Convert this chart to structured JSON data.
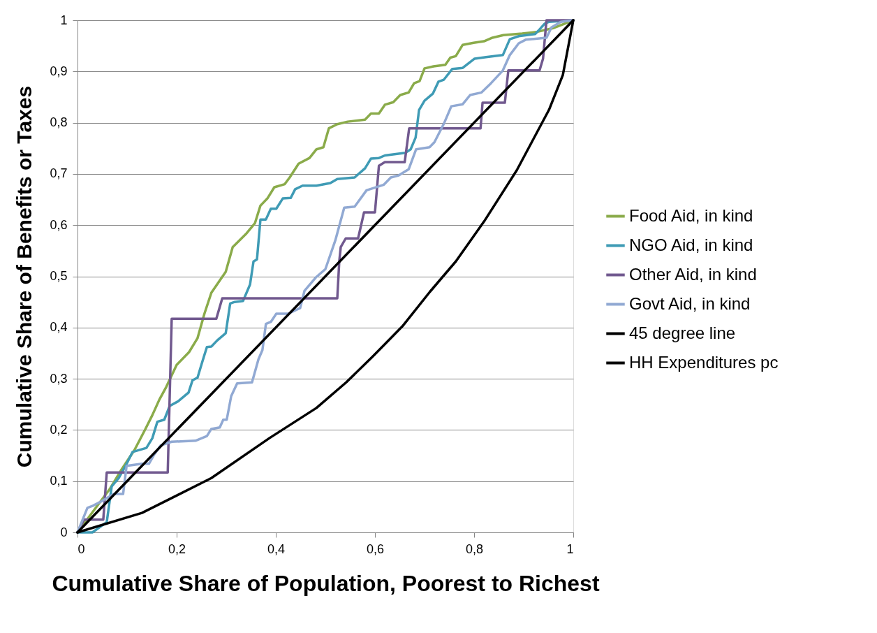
{
  "chart_data": {
    "type": "line",
    "xlabel": "Cumulative Share of Population, Poorest to Richest",
    "ylabel": "Cumulative Share of Benefits or Taxes",
    "xlim": [
      0,
      1
    ],
    "ylim": [
      0,
      1
    ],
    "xticks": [
      0,
      {
        "value": 0.2,
        "label": "0,2"
      },
      {
        "value": 0.4,
        "label": "0,4"
      },
      {
        "value": 0.6,
        "label": "0,6"
      },
      {
        "value": 0.8,
        "label": "0,8"
      },
      1
    ],
    "yticks": [
      0,
      {
        "value": 0.1,
        "label": "0,1"
      },
      {
        "value": 0.2,
        "label": "0,2"
      },
      {
        "value": 0.3,
        "label": "0,3"
      },
      {
        "value": 0.4,
        "label": "0,4"
      },
      {
        "value": 0.5,
        "label": "0,5"
      },
      {
        "value": 0.6,
        "label": "0,6"
      },
      {
        "value": 0.7,
        "label": "0,7"
      },
      {
        "value": 0.8,
        "label": "0,8"
      },
      {
        "value": 0.9,
        "label": "0,9"
      },
      1
    ],
    "grid": "y",
    "legend": "right",
    "series": [
      {
        "name": "Food Aid, in kind",
        "color": "#8aab4a",
        "x": [
          0,
          0.066,
          0.087,
          0.115,
          0.137,
          0.151,
          0.165,
          0.179,
          0.2,
          0.225,
          0.242,
          0.256,
          0.27,
          0.299,
          0.313,
          0.341,
          0.358,
          0.369,
          0.383,
          0.397,
          0.418,
          0.428,
          0.446,
          0.468,
          0.482,
          0.496,
          0.507,
          0.524,
          0.545,
          0.58,
          0.592,
          0.608,
          0.62,
          0.637,
          0.651,
          0.668,
          0.679,
          0.69,
          0.7,
          0.718,
          0.742,
          0.752,
          0.763,
          0.777,
          0.799,
          0.82,
          0.837,
          0.859,
          0.897,
          0.925,
          0.961,
          1
        ],
        "values": [
          0,
          0.086,
          0.12,
          0.161,
          0.202,
          0.229,
          0.259,
          0.284,
          0.327,
          0.352,
          0.379,
          0.427,
          0.468,
          0.509,
          0.557,
          0.584,
          0.604,
          0.638,
          0.652,
          0.674,
          0.68,
          0.693,
          0.72,
          0.731,
          0.748,
          0.752,
          0.789,
          0.797,
          0.802,
          0.806,
          0.818,
          0.818,
          0.835,
          0.84,
          0.854,
          0.859,
          0.877,
          0.881,
          0.906,
          0.91,
          0.913,
          0.927,
          0.93,
          0.952,
          0.956,
          0.959,
          0.966,
          0.971,
          0.974,
          0.977,
          0.985,
          1
        ]
      },
      {
        "name": "NGO Aid, in kind",
        "color": "#3f9bb5",
        "x": [
          0,
          0.03,
          0.059,
          0.069,
          0.083,
          0.097,
          0.111,
          0.139,
          0.151,
          0.161,
          0.175,
          0.186,
          0.203,
          0.224,
          0.232,
          0.242,
          0.252,
          0.261,
          0.27,
          0.282,
          0.299,
          0.308,
          0.317,
          0.334,
          0.348,
          0.355,
          0.362,
          0.369,
          0.38,
          0.39,
          0.401,
          0.414,
          0.43,
          0.439,
          0.454,
          0.482,
          0.51,
          0.524,
          0.559,
          0.58,
          0.592,
          0.608,
          0.62,
          0.661,
          0.672,
          0.682,
          0.689,
          0.7,
          0.717,
          0.728,
          0.739,
          0.756,
          0.777,
          0.801,
          0.824,
          0.858,
          0.872,
          0.89,
          0.923,
          0.932,
          0.942,
          0.951,
          1
        ],
        "values": [
          0,
          0,
          0.02,
          0.09,
          0.106,
          0.13,
          0.157,
          0.165,
          0.184,
          0.216,
          0.22,
          0.247,
          0.256,
          0.273,
          0.297,
          0.302,
          0.334,
          0.362,
          0.363,
          0.375,
          0.389,
          0.447,
          0.45,
          0.452,
          0.484,
          0.529,
          0.533,
          0.611,
          0.611,
          0.632,
          0.632,
          0.652,
          0.653,
          0.67,
          0.677,
          0.677,
          0.682,
          0.69,
          0.693,
          0.711,
          0.73,
          0.731,
          0.736,
          0.741,
          0.748,
          0.771,
          0.825,
          0.843,
          0.857,
          0.88,
          0.884,
          0.905,
          0.907,
          0.925,
          0.928,
          0.932,
          0.963,
          0.969,
          0.973,
          0.982,
          0.993,
          0.997,
          1
        ]
      },
      {
        "name": "Other Aid, in kind",
        "color": "#71598f",
        "x": [
          0,
          0.013,
          0.052,
          0.059,
          0.182,
          0.19,
          0.28,
          0.292,
          0.524,
          0.528,
          0.531,
          0.541,
          0.566,
          0.578,
          0.6,
          0.608,
          0.62,
          0.66,
          0.669,
          0.813,
          0.817,
          0.862,
          0.869,
          0.932,
          0.939,
          0.946,
          1
        ],
        "values": [
          0,
          0.025,
          0.025,
          0.117,
          0.117,
          0.417,
          0.417,
          0.457,
          0.457,
          0.529,
          0.557,
          0.574,
          0.574,
          0.625,
          0.625,
          0.716,
          0.723,
          0.723,
          0.789,
          0.789,
          0.839,
          0.839,
          0.902,
          0.902,
          0.925,
          1,
          1
        ]
      },
      {
        "name": "Govt Aid, in kind",
        "color": "#91a9d3",
        "x": [
          0,
          0.02,
          0.031,
          0.049,
          0.073,
          0.092,
          0.099,
          0.13,
          0.144,
          0.154,
          0.168,
          0.19,
          0.238,
          0.261,
          0.27,
          0.287,
          0.294,
          0.301,
          0.31,
          0.322,
          0.352,
          0.365,
          0.373,
          0.38,
          0.39,
          0.401,
          0.425,
          0.449,
          0.458,
          0.482,
          0.5,
          0.52,
          0.538,
          0.559,
          0.583,
          0.618,
          0.632,
          0.648,
          0.668,
          0.683,
          0.71,
          0.72,
          0.739,
          0.754,
          0.777,
          0.792,
          0.815,
          0.834,
          0.858,
          0.872,
          0.89,
          0.904,
          0.946,
          0.956,
          0.975,
          1
        ],
        "values": [
          0,
          0.048,
          0.052,
          0.061,
          0.075,
          0.075,
          0.13,
          0.134,
          0.134,
          0.151,
          0.17,
          0.177,
          0.179,
          0.188,
          0.202,
          0.205,
          0.22,
          0.22,
          0.266,
          0.291,
          0.293,
          0.338,
          0.356,
          0.407,
          0.411,
          0.427,
          0.427,
          0.438,
          0.472,
          0.499,
          0.514,
          0.57,
          0.634,
          0.636,
          0.668,
          0.679,
          0.693,
          0.697,
          0.709,
          0.748,
          0.752,
          0.762,
          0.798,
          0.832,
          0.836,
          0.854,
          0.859,
          0.877,
          0.902,
          0.932,
          0.955,
          0.962,
          0.966,
          0.986,
          0.997,
          1
        ]
      },
      {
        "name": "45 degree line",
        "color": "#000000",
        "x": [
          0,
          1
        ],
        "values": [
          0,
          1
        ]
      },
      {
        "name": "HH Expenditures pc",
        "color": "#000000",
        "x": [
          0,
          0.13,
          0.27,
          0.387,
          0.482,
          0.542,
          0.594,
          0.655,
          0.711,
          0.763,
          0.82,
          0.886,
          0.951,
          0.979,
          1
        ],
        "values": [
          0,
          0.038,
          0.106,
          0.184,
          0.243,
          0.293,
          0.342,
          0.402,
          0.47,
          0.529,
          0.607,
          0.707,
          0.825,
          0.893,
          1
        ]
      }
    ]
  }
}
